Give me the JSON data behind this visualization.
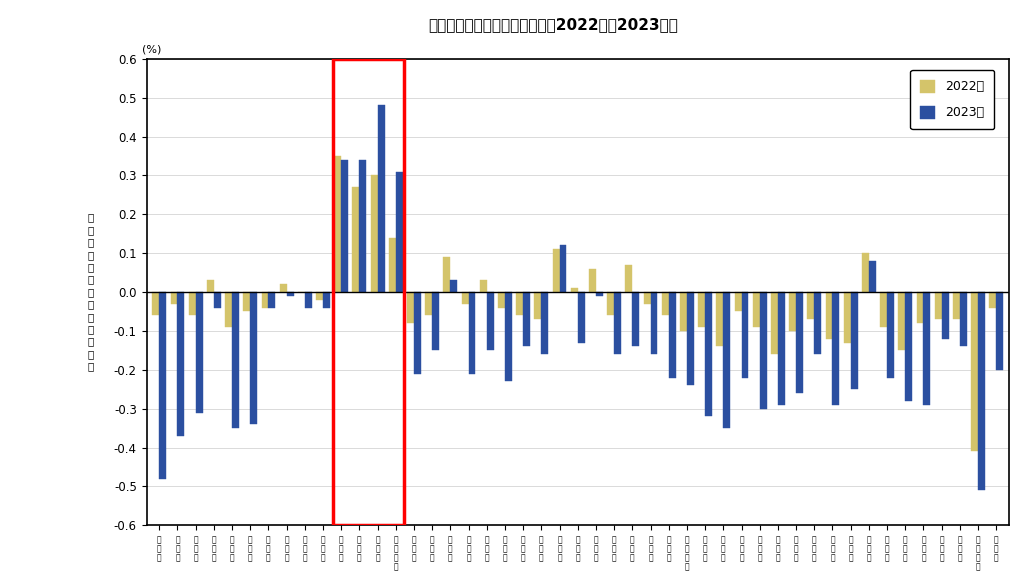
{
  "title": "図３　都道府県別転入超過率（2022年、2023年）",
  "ylim": [
    -0.6,
    0.6
  ],
  "yticks": [
    -0.6,
    -0.5,
    -0.4,
    -0.3,
    -0.2,
    -0.1,
    0.0,
    0.1,
    0.2,
    0.3,
    0.4,
    0.5,
    0.6
  ],
  "color_2022": "#D4C46A",
  "color_2023": "#2B4FA0",
  "highlight_rect_color": "#FF0000",
  "prefectures": [
    "北\n海\n道",
    "青\n森\n県",
    "岩\n手\n県",
    "宮\n城\n県",
    "秋\n田\n県",
    "山\n形\n県",
    "福\n島\n県",
    "茨\n城\n県",
    "栃\n木\n県",
    "群\n馬\n県",
    "埼\n玉\n県",
    "千\n葉\n県",
    "東\n京\n都",
    "神\n奈\n川\n県",
    "新\n潟\n県",
    "富\n山\n県",
    "石\n川\n県",
    "福\n井\n県",
    "山\n梨\n県",
    "長\n野\n県",
    "岐\n阜\n県",
    "静\n岡\n県",
    "愛\n知\n県",
    "三\n重\n県",
    "滋\n賀\n県",
    "京\n都\n府",
    "大\n阪\n府",
    "兵\n庫\n県",
    "奈\n良\n県",
    "和\n歌\n山\n県",
    "鳥\n取\n県",
    "島\n根\n県",
    "岡\n山\n県",
    "広\n島\n県",
    "山\n口\n県",
    "徳\n島\n県",
    "香\n川\n県",
    "愛\n媛\n県",
    "高\n知\n県",
    "福\n岡\n県",
    "佐\n賀\n県",
    "長\n崎\n県",
    "熊\n本\n県",
    "大\n分\n県",
    "宮\n崎\n県",
    "鹿\n児\n島\n県",
    "沖\n縄\n県"
  ],
  "values_2022": [
    -0.06,
    -0.03,
    -0.06,
    0.03,
    -0.09,
    -0.05,
    -0.04,
    0.02,
    0.0,
    -0.02,
    0.35,
    0.27,
    0.3,
    0.14,
    -0.08,
    -0.06,
    0.09,
    -0.03,
    0.03,
    -0.04,
    -0.06,
    -0.07,
    0.11,
    0.01,
    0.06,
    -0.06,
    0.07,
    -0.03,
    -0.06,
    -0.1,
    -0.09,
    -0.14,
    -0.05,
    -0.09,
    -0.16,
    -0.1,
    -0.07,
    -0.12,
    -0.13,
    0.1,
    -0.09,
    -0.15,
    -0.08,
    -0.07,
    -0.07,
    -0.41,
    -0.04
  ],
  "values_2023": [
    -0.48,
    -0.37,
    -0.31,
    -0.04,
    -0.35,
    -0.34,
    -0.04,
    -0.01,
    -0.04,
    -0.04,
    0.34,
    0.34,
    0.48,
    0.31,
    -0.21,
    -0.15,
    0.03,
    -0.21,
    -0.15,
    -0.23,
    -0.14,
    -0.16,
    0.12,
    -0.13,
    -0.01,
    -0.16,
    -0.14,
    -0.16,
    -0.22,
    -0.24,
    -0.32,
    -0.35,
    -0.22,
    -0.3,
    -0.29,
    -0.26,
    -0.16,
    -0.29,
    -0.25,
    0.08,
    -0.22,
    -0.28,
    -0.29,
    -0.12,
    -0.14,
    -0.51,
    -0.2
  ],
  "highlight_indices": [
    10,
    11,
    12,
    13
  ],
  "legend_2022": "2022年",
  "legend_2023": "2023年",
  "ylabel_line1": "転",
  "ylabel_line2": "入",
  "ylabel_line3": "超",
  "ylabel_line4": "過",
  "ylabel_line5": "率",
  "ylabel_line6": "（",
  "ylabel_line7": "）",
  "ylabel_line8": "は",
  "ylabel_line9": "転",
  "ylabel_line10": "出",
  "ylabel_line11": "超",
  "ylabel_line12": "過",
  "ylabel_line13": "率",
  "background_color": "#FFFFFF",
  "grid_color": "#CCCCCC",
  "border_color": "#000000"
}
